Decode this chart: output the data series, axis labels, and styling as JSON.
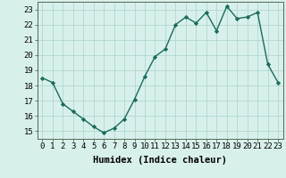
{
  "x": [
    0,
    1,
    2,
    3,
    4,
    5,
    6,
    7,
    8,
    9,
    10,
    11,
    12,
    13,
    14,
    15,
    16,
    17,
    18,
    19,
    20,
    21,
    22,
    23
  ],
  "y": [
    18.5,
    18.2,
    16.8,
    16.3,
    15.8,
    15.3,
    14.9,
    15.2,
    15.8,
    17.1,
    18.6,
    19.9,
    20.4,
    22.0,
    22.5,
    22.1,
    22.8,
    21.6,
    23.2,
    22.4,
    22.5,
    22.8,
    19.4,
    18.2
  ],
  "line_color": "#1a6b5c",
  "marker": "D",
  "marker_size": 2.2,
  "linewidth": 1.0,
  "bg_color": "#d8f0eb",
  "grid_color": "#b0d8d0",
  "xlabel": "Humidex (Indice chaleur)",
  "xlim": [
    -0.5,
    23.5
  ],
  "ylim": [
    14.5,
    23.5
  ],
  "yticks": [
    15,
    16,
    17,
    18,
    19,
    20,
    21,
    22,
    23
  ],
  "xticks": [
    0,
    1,
    2,
    3,
    4,
    5,
    6,
    7,
    8,
    9,
    10,
    11,
    12,
    13,
    14,
    15,
    16,
    17,
    18,
    19,
    20,
    21,
    22,
    23
  ],
  "xlabel_fontsize": 7.5,
  "tick_fontsize": 6.5
}
